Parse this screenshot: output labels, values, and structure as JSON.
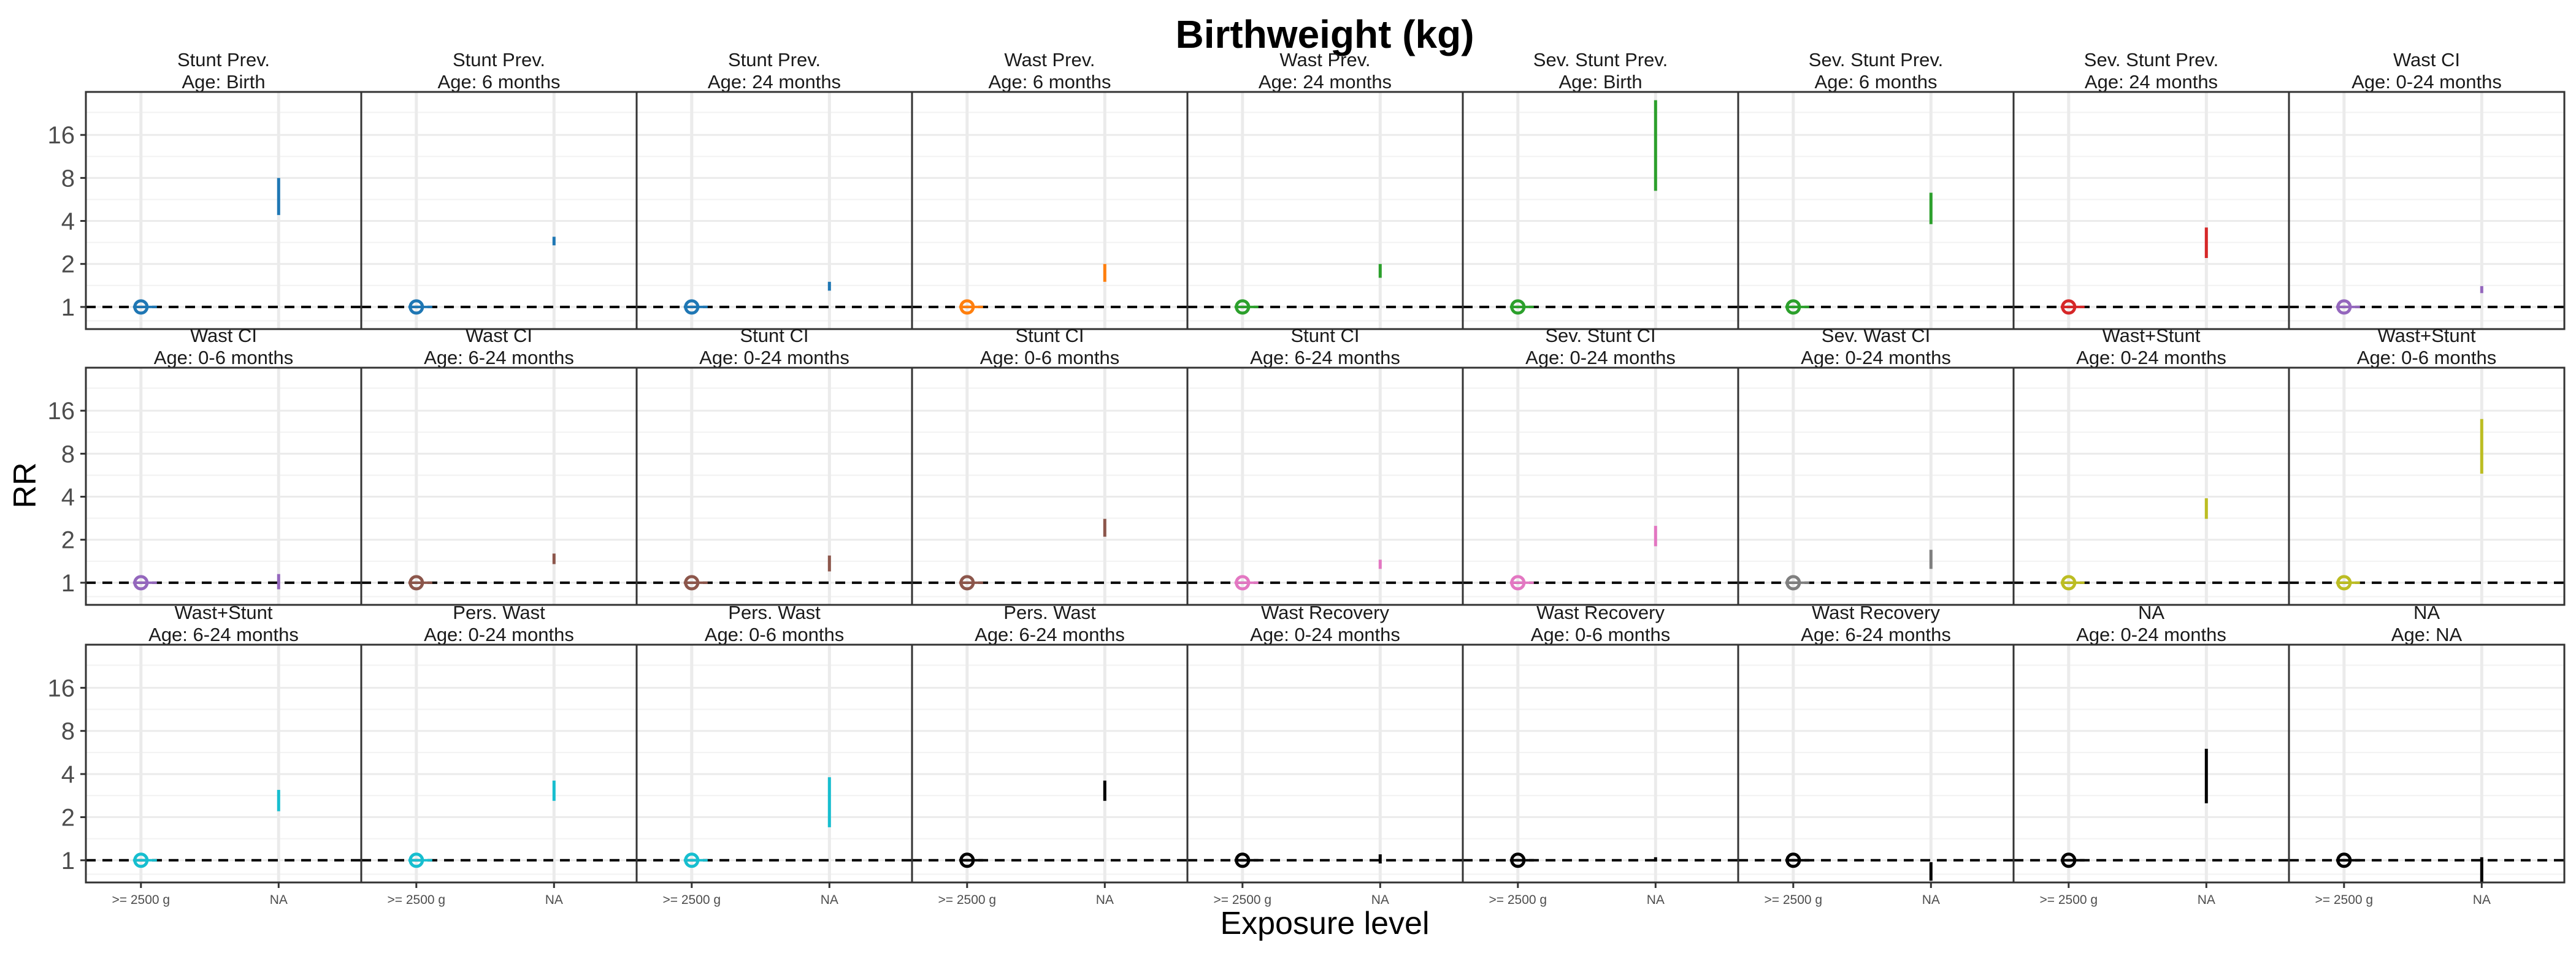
{
  "chart_data": {
    "type": "scatter",
    "title": "Birthweight (kg)",
    "xlabel": "Exposure level",
    "ylabel": "RR",
    "x_categories": [
      ">= 2500 g",
      "NA"
    ],
    "y_scale": "log2",
    "y_ticks": [
      1,
      2,
      4,
      8,
      16
    ],
    "ylim": [
      0.7,
      32
    ],
    "reference_line": 1,
    "grid": true,
    "panels": [
      {
        "strip": [
          "Stunt Prev.",
          "Age: Birth"
        ],
        "color": "#1F77B4",
        "ref_rr": 1,
        "na_ci": [
          4.4,
          8.0
        ]
      },
      {
        "strip": [
          "Stunt Prev.",
          "Age: 6 months"
        ],
        "color": "#1F77B4",
        "ref_rr": 1,
        "na_ci": [
          2.7,
          3.1
        ]
      },
      {
        "strip": [
          "Stunt Prev.",
          "Age: 24 months"
        ],
        "color": "#1F77B4",
        "ref_rr": 1,
        "na_ci": [
          1.3,
          1.5
        ]
      },
      {
        "strip": [
          "Wast Prev.",
          "Age: 6 months"
        ],
        "color": "#FF7F0E",
        "ref_rr": 1,
        "na_ci": [
          1.5,
          2.0
        ]
      },
      {
        "strip": [
          "Wast Prev.",
          "Age: 24 months"
        ],
        "color": "#2CA02C",
        "ref_rr": 1,
        "na_ci": [
          1.6,
          2.0
        ]
      },
      {
        "strip": [
          "Sev. Stunt Prev.",
          "Age: Birth"
        ],
        "color": "#2CA02C",
        "ref_rr": 1,
        "na_ci": [
          6.5,
          28.0
        ]
      },
      {
        "strip": [
          "Sev. Stunt Prev.",
          "Age: 6 months"
        ],
        "color": "#2CA02C",
        "ref_rr": 1,
        "na_ci": [
          3.8,
          6.3
        ]
      },
      {
        "strip": [
          "Sev. Stunt Prev.",
          "Age: 24 months"
        ],
        "color": "#D62728",
        "ref_rr": 1,
        "na_ci": [
          2.2,
          3.6
        ]
      },
      {
        "strip": [
          "Wast CI",
          "Age: 0-24 months"
        ],
        "color": "#9467BD",
        "ref_rr": 1,
        "na_ci": [
          1.25,
          1.4
        ]
      },
      {
        "strip": [
          "Wast CI",
          "Age: 0-6 months"
        ],
        "color": "#9467BD",
        "ref_rr": 1,
        "na_ci": [
          0.9,
          1.15
        ]
      },
      {
        "strip": [
          "Wast CI",
          "Age: 6-24 months"
        ],
        "color": "#8C564B",
        "ref_rr": 1,
        "na_ci": [
          1.35,
          1.6
        ]
      },
      {
        "strip": [
          "Stunt CI",
          "Age: 0-24 months"
        ],
        "color": "#8C564B",
        "ref_rr": 1,
        "na_ci": [
          1.2,
          1.55
        ]
      },
      {
        "strip": [
          "Stunt CI",
          "Age: 0-6 months"
        ],
        "color": "#8C564B",
        "ref_rr": 1,
        "na_ci": [
          2.1,
          2.8
        ]
      },
      {
        "strip": [
          "Stunt CI",
          "Age: 6-24 months"
        ],
        "color": "#E377C2",
        "ref_rr": 1,
        "na_ci": [
          1.25,
          1.45
        ]
      },
      {
        "strip": [
          "Sev. Stunt CI",
          "Age: 0-24 months"
        ],
        "color": "#E377C2",
        "ref_rr": 1,
        "na_ci": [
          1.8,
          2.5
        ]
      },
      {
        "strip": [
          "Sev. Wast CI",
          "Age: 0-24 months"
        ],
        "color": "#7F7F7F",
        "ref_rr": 1,
        "na_ci": [
          1.25,
          1.7
        ]
      },
      {
        "strip": [
          "Wast+Stunt",
          "Age: 0-24 months"
        ],
        "color": "#BCBD22",
        "ref_rr": 1,
        "na_ci": [
          2.8,
          3.9
        ]
      },
      {
        "strip": [
          "Wast+Stunt",
          "Age: 0-6 months"
        ],
        "color": "#BCBD22",
        "ref_rr": 1,
        "na_ci": [
          5.8,
          14.0
        ]
      },
      {
        "strip": [
          "Wast+Stunt",
          "Age: 6-24 months"
        ],
        "color": "#17BECF",
        "ref_rr": 1,
        "na_ci": [
          2.2,
          3.1
        ]
      },
      {
        "strip": [
          "Pers. Wast",
          "Age: 0-24 months"
        ],
        "color": "#17BECF",
        "ref_rr": 1,
        "na_ci": [
          2.6,
          3.6
        ]
      },
      {
        "strip": [
          "Pers. Wast",
          "Age: 0-6 months"
        ],
        "color": "#17BECF",
        "ref_rr": 1,
        "na_ci": [
          1.7,
          3.8
        ]
      },
      {
        "strip": [
          "Pers. Wast",
          "Age: 6-24 months"
        ],
        "color": "#000000",
        "ref_rr": 1,
        "na_ci": [
          2.6,
          3.6
        ]
      },
      {
        "strip": [
          "Wast Recovery",
          "Age: 0-24 months"
        ],
        "color": "#000000",
        "ref_rr": 1,
        "na_ci": [
          0.95,
          1.1
        ]
      },
      {
        "strip": [
          "Wast Recovery",
          "Age: 0-6 months"
        ],
        "color": "#000000",
        "ref_rr": 1,
        "na_ci": [
          0.98,
          1.05
        ]
      },
      {
        "strip": [
          "Wast Recovery",
          "Age: 6-24 months"
        ],
        "color": "#000000",
        "ref_rr": 1,
        "na_ci": [
          0.72,
          0.97
        ]
      },
      {
        "strip": [
          "NA",
          "Age: 0-24 months"
        ],
        "color": "#000000",
        "ref_rr": 1,
        "na_ci": [
          2.5,
          6.0
        ]
      },
      {
        "strip": [
          "NA",
          "Age: NA"
        ],
        "color": "#000000",
        "ref_rr": 1,
        "na_ci": [
          0.7,
          1.05
        ]
      }
    ]
  }
}
